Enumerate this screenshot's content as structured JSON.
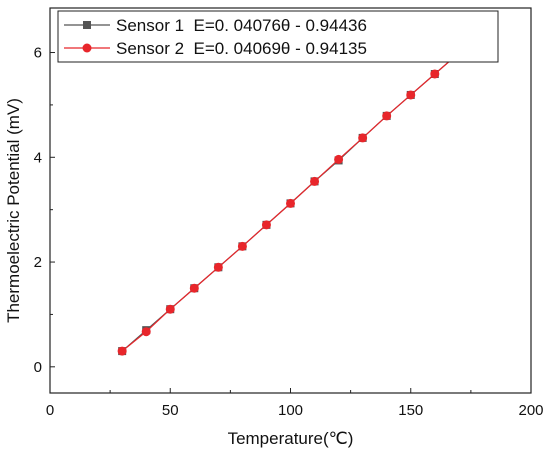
{
  "chart_data": {
    "type": "line",
    "xlabel": "Temperature(℃)",
    "ylabel": "Thermoelectric Potential (mV)",
    "xlim": [
      0,
      200
    ],
    "ylim": [
      -0.5,
      6.85
    ],
    "xticks": [
      0,
      50,
      100,
      150,
      200
    ],
    "yticks": [
      0,
      2,
      4,
      6
    ],
    "grid": false,
    "legend_position": "top-left",
    "series": [
      {
        "name": "Sensor 1  E=0. 04076θ - 0.94436",
        "color": "#555555",
        "marker": "square",
        "x": [
          30,
          40,
          50,
          60,
          70,
          80,
          90,
          100,
          110,
          120,
          130,
          140,
          150,
          160,
          170,
          180
        ],
        "y": [
          0.3,
          0.7,
          1.1,
          1.5,
          1.9,
          2.3,
          2.71,
          3.12,
          3.54,
          3.94,
          4.37,
          4.79,
          5.19,
          5.59,
          5.99,
          6.39
        ]
      },
      {
        "name": "Sensor 2  E=0. 04069θ - 0.94135",
        "color": "#e8262b",
        "marker": "circle",
        "x": [
          30,
          40,
          50,
          60,
          70,
          80,
          90,
          100,
          110,
          120,
          130,
          140,
          150,
          160,
          170,
          180
        ],
        "y": [
          0.3,
          0.67,
          1.1,
          1.5,
          1.9,
          2.3,
          2.71,
          3.12,
          3.54,
          3.96,
          4.37,
          4.79,
          5.19,
          5.59,
          5.99,
          6.39
        ]
      }
    ]
  }
}
